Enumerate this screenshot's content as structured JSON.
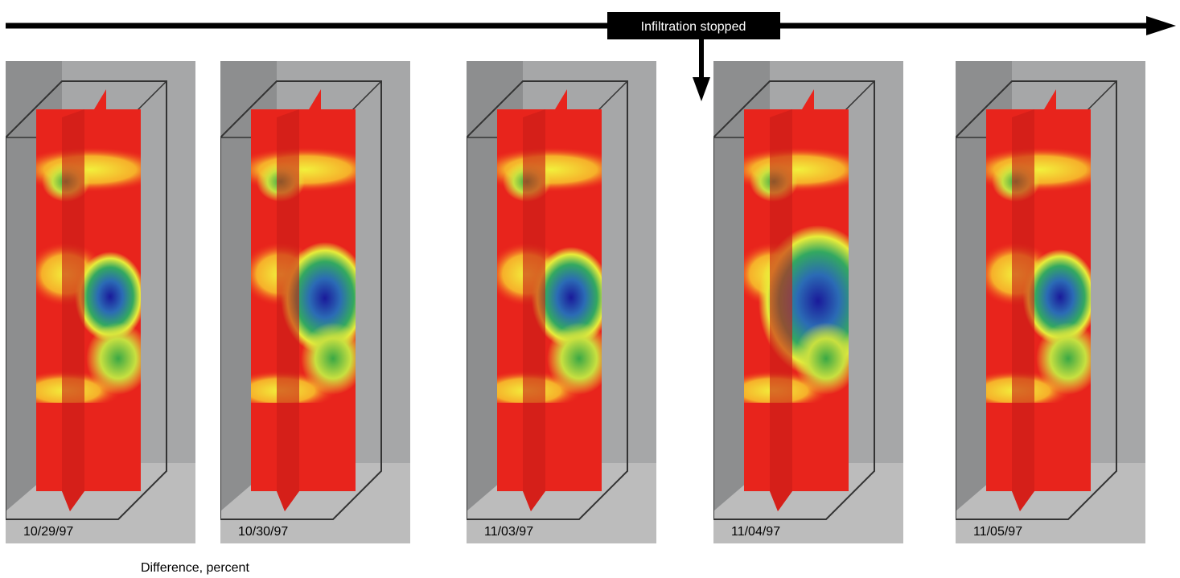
{
  "annotation": "Infiltration stopped",
  "panels": [
    {
      "label": "10/29/97"
    },
    {
      "label": "10/30/97"
    },
    {
      "label": "11/03/97"
    },
    {
      "label": "11/04/97"
    },
    {
      "label": "11/05/97"
    }
  ],
  "caption": "Difference, percent"
}
